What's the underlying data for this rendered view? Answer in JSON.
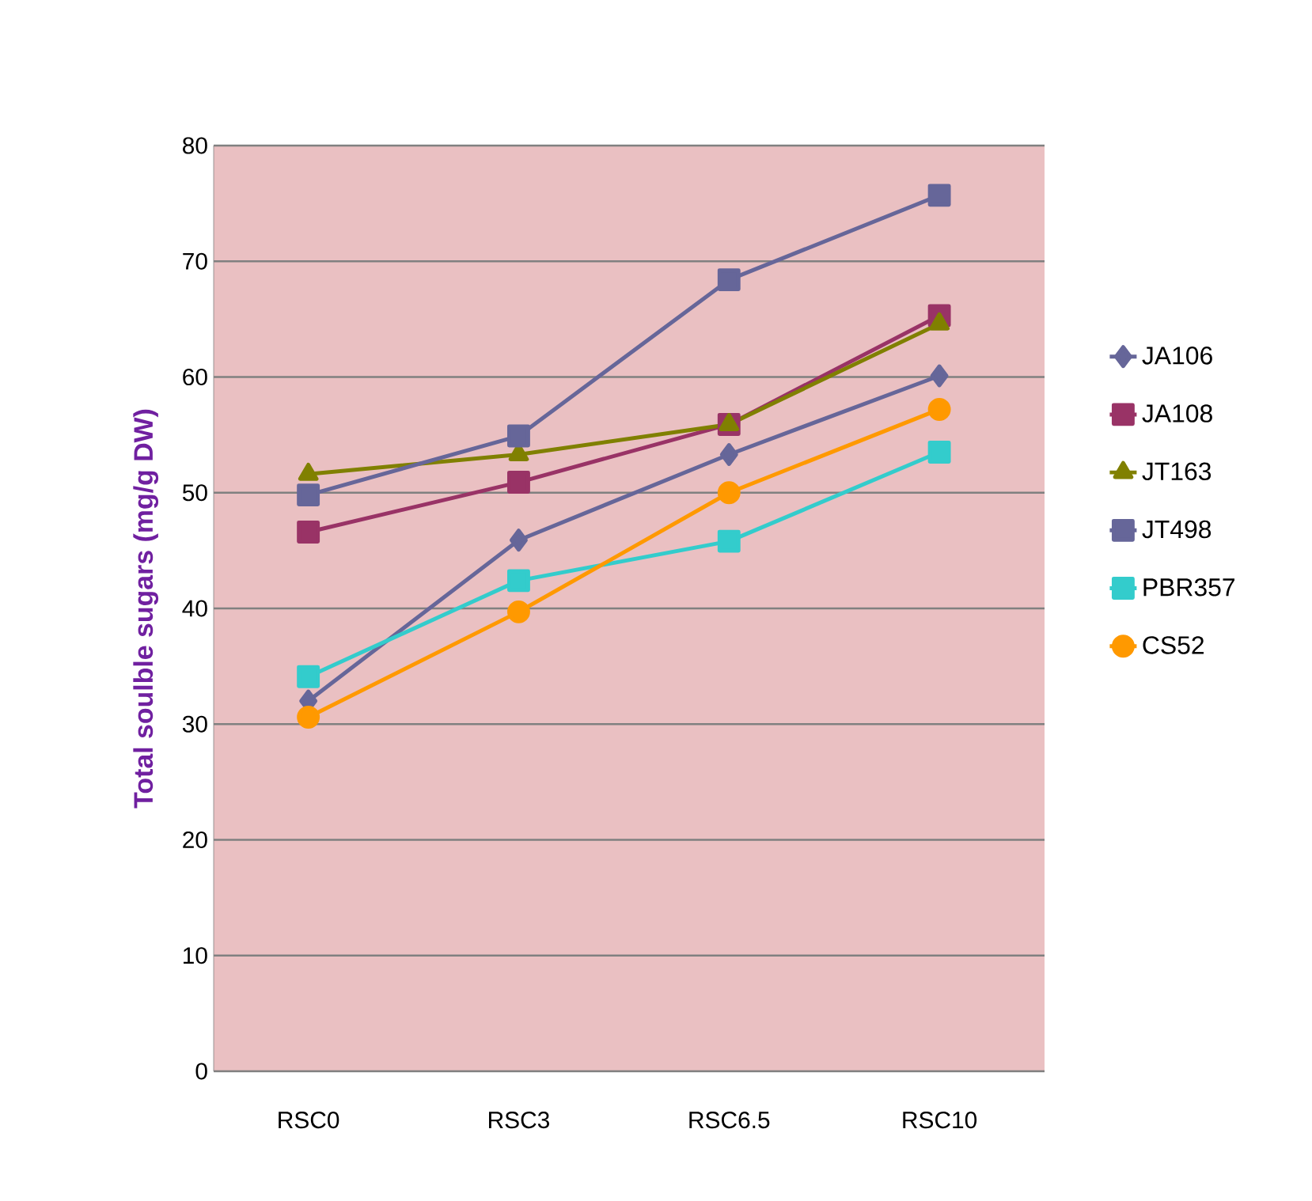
{
  "chart_data": {
    "type": "line",
    "ylabel": "Total soulble sugars (mg/g DW)",
    "categories": [
      "RSC0",
      "RSC3",
      "RSC6.5",
      "RSC10"
    ],
    "series": [
      {
        "name": "JA106",
        "color": "#666699",
        "marker": "diamond",
        "values": [
          32.0,
          45.9,
          53.3,
          60.1
        ]
      },
      {
        "name": "JA108",
        "color": "#993366",
        "marker": "square",
        "values": [
          46.6,
          50.9,
          55.9,
          65.3
        ]
      },
      {
        "name": "JT163",
        "color": "#808000",
        "marker": "triangle",
        "values": [
          51.6,
          53.3,
          55.9,
          64.6
        ]
      },
      {
        "name": "JT498",
        "color": "#666699",
        "marker": "square",
        "values": [
          49.8,
          54.9,
          68.4,
          75.7
        ]
      },
      {
        "name": "PBR357",
        "color": "#33CCCC",
        "marker": "square",
        "values": [
          34.1,
          42.4,
          45.8,
          53.5
        ]
      },
      {
        "name": "CS52",
        "color": "#FF9900",
        "marker": "circle",
        "values": [
          30.6,
          39.7,
          50.0,
          57.2
        ]
      }
    ],
    "ylim": [
      0,
      80
    ],
    "yticks": [
      0,
      10,
      20,
      30,
      40,
      50,
      60,
      70,
      80
    ],
    "grid": "y",
    "legend": "right"
  }
}
